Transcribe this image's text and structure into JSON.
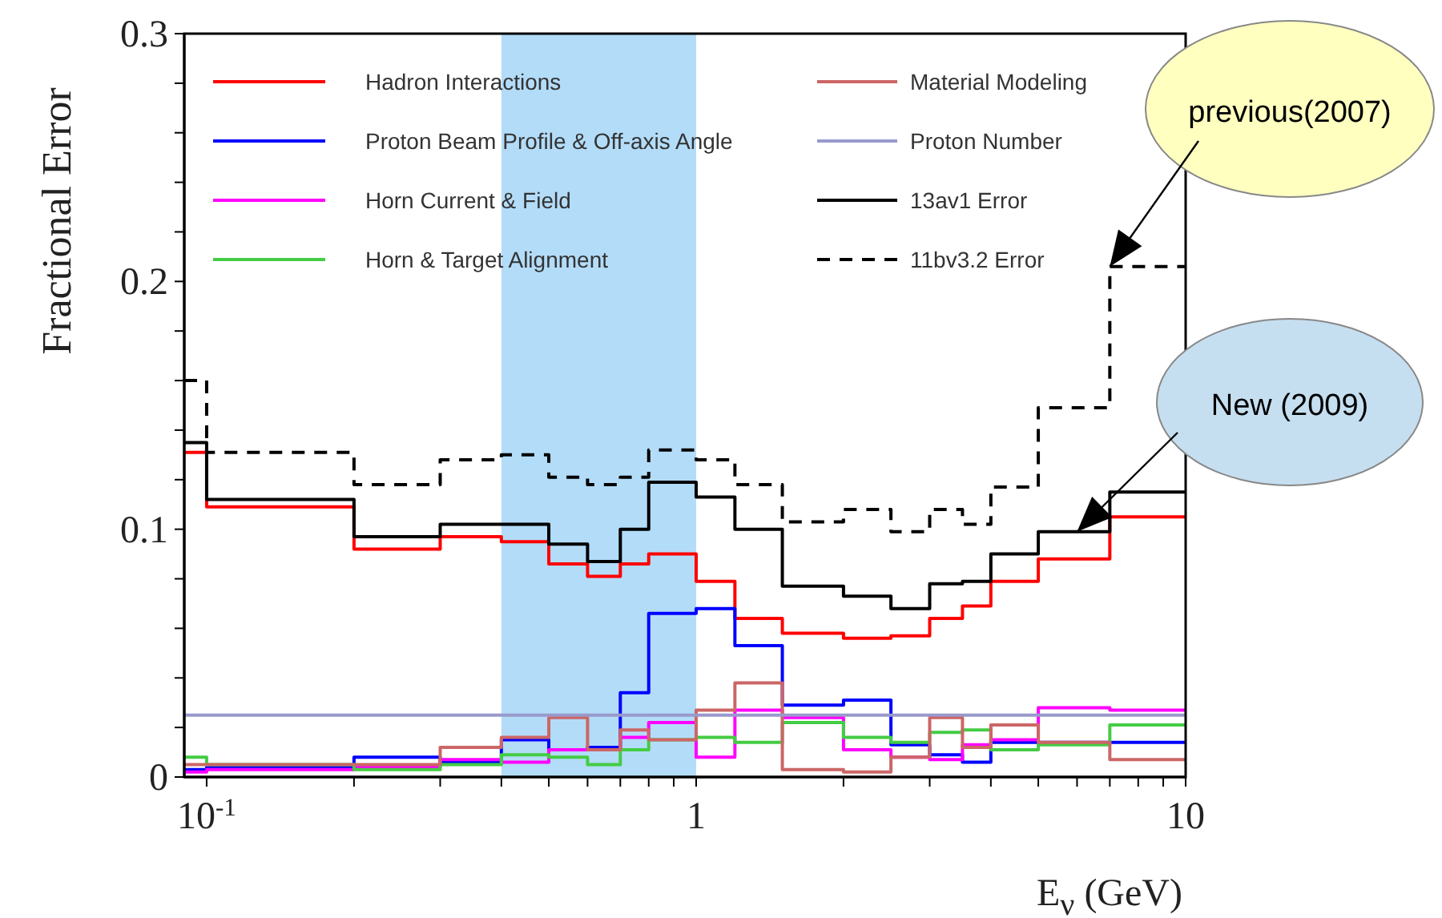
{
  "chart_data": {
    "type": "histogram",
    "xlabel": "E$_{ν}$ (GeV)",
    "ylabel": "Fractional Error",
    "log": "x",
    "bins": [
      0.09,
      0.1,
      0.2,
      0.3,
      0.4,
      0.5,
      0.6,
      0.7,
      0.8,
      1.0,
      1.2,
      1.5,
      2,
      2.5,
      3,
      3.5,
      4,
      5,
      7,
      10
    ],
    "series": [
      {
        "name": "Hadron Interactions",
        "color": "#ff0000",
        "values": [
          0.131,
          0.109,
          0.092,
          0.097,
          0.095,
          0.086,
          0.081,
          0.086,
          0.09,
          0.079,
          0.064,
          0.058,
          0.056,
          0.057,
          0.064,
          0.069,
          0.079,
          0.088,
          0.105
        ]
      },
      {
        "name": "Proton Beam Profile & Off-axis Angle",
        "color": "#0000ff",
        "values": [
          0.003,
          0.004,
          0.008,
          0.006,
          0.015,
          0.011,
          0.012,
          0.034,
          0.066,
          0.068,
          0.053,
          0.029,
          0.031,
          0.013,
          0.009,
          0.006,
          0.014,
          0.014,
          0.014
        ]
      },
      {
        "name": "Horn Current & Field",
        "color": "#ff00ff",
        "values": [
          0.002,
          0.003,
          0.004,
          0.007,
          0.006,
          0.011,
          0.011,
          0.016,
          0.022,
          0.008,
          0.027,
          0.024,
          0.011,
          0.008,
          0.007,
          0.013,
          0.015,
          0.028,
          0.027
        ]
      },
      {
        "name": "Horn & Target Alignment",
        "color": "#44cc44",
        "values": [
          0.008,
          0.005,
          0.003,
          0.005,
          0.009,
          0.008,
          0.005,
          0.011,
          0.015,
          0.016,
          0.014,
          0.022,
          0.016,
          0.014,
          0.018,
          0.019,
          0.011,
          0.013,
          0.021
        ]
      },
      {
        "name": "Material Modeling",
        "color": "#cc6666",
        "values": [
          0.005,
          0.005,
          0.005,
          0.012,
          0.016,
          0.024,
          0.011,
          0.019,
          0.015,
          0.027,
          0.038,
          0.003,
          0.002,
          0.008,
          0.024,
          0.012,
          0.021,
          0.014,
          0.007
        ]
      },
      {
        "name": "Proton Number",
        "color": "#9999cc",
        "values": [
          0.025,
          0.025,
          0.025,
          0.025,
          0.025,
          0.025,
          0.025,
          0.025,
          0.025,
          0.025,
          0.025,
          0.025,
          0.025,
          0.025,
          0.025,
          0.025,
          0.025,
          0.025,
          0.025
        ]
      },
      {
        "name": "13av1 Error",
        "color": "#000000",
        "values": [
          0.135,
          0.112,
          0.097,
          0.102,
          0.102,
          0.094,
          0.087,
          0.1,
          0.119,
          0.113,
          0.1,
          0.077,
          0.073,
          0.068,
          0.078,
          0.079,
          0.09,
          0.099,
          0.115
        ]
      },
      {
        "name": "11bv3.2 Error",
        "color": "#000000",
        "line_style": "dashed",
        "values": [
          0.16,
          0.131,
          0.118,
          0.128,
          0.13,
          0.121,
          0.118,
          0.121,
          0.132,
          0.128,
          0.118,
          0.103,
          0.108,
          0.099,
          0.108,
          0.102,
          0.117,
          0.149,
          0.206
        ]
      }
    ],
    "xlim": [
      0.09,
      10
    ],
    "xticks": [
      {
        "value": 0.1,
        "label": "10$^{-1}$"
      },
      {
        "value": 0.2,
        "label": null
      },
      {
        "value": 0.3,
        "label": null
      },
      {
        "value": 0.4,
        "label": null
      },
      {
        "value": 0.5,
        "label": null
      },
      {
        "value": 0.6,
        "label": null
      },
      {
        "value": 0.7,
        "label": null
      },
      {
        "value": 0.8,
        "label": null
      },
      {
        "value": 0.9,
        "label": null
      },
      1,
      {
        "value": 2,
        "label": null
      },
      {
        "value": 3,
        "label": null
      },
      {
        "value": 4,
        "label": null
      },
      {
        "value": 5,
        "label": null
      },
      {
        "value": 6,
        "label": null
      },
      {
        "value": 7,
        "label": null
      },
      {
        "value": 8,
        "label": null
      },
      {
        "value": 9,
        "label": null
      },
      10
    ],
    "ylim": [
      0,
      0.3
    ],
    "yticks": [
      0,
      {
        "value": 0.02,
        "label": null
      },
      {
        "value": 0.04,
        "label": null
      },
      {
        "value": 0.06,
        "label": null
      },
      {
        "value": 0.08,
        "label": null
      },
      0.1,
      {
        "value": 0.12,
        "label": null
      },
      {
        "value": 0.14,
        "label": null
      },
      {
        "value": 0.16,
        "label": null
      },
      {
        "value": 0.18,
        "label": null
      },
      0.2,
      {
        "value": 0.22,
        "label": null
      },
      {
        "value": 0.24,
        "label": null
      },
      {
        "value": 0.26,
        "label": null
      },
      {
        "value": 0.28,
        "label": null
      },
      0.3
    ],
    "bands": [
      {
        "axis": "x",
        "from": 0.4,
        "to": 1,
        "color": "#b3dcf8"
      }
    ],
    "legend": "top",
    "annotations": [
      {
        "text": "previous(2007)",
        "x": 7,
        "y": 0.206
      },
      {
        "text": "New (2009)",
        "x": 6,
        "y": 0.099
      }
    ]
  }
}
